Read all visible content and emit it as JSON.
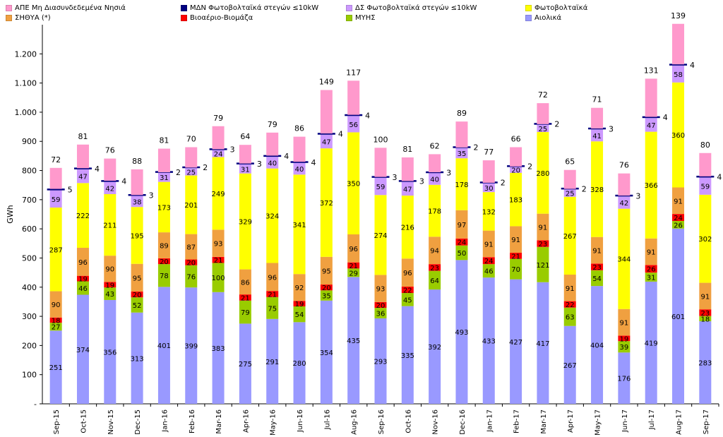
{
  "chart_data": {
    "type": "bar",
    "stacked": true,
    "title": "",
    "xlabel": "",
    "ylabel": "GWh",
    "ylim": [
      0,
      1300
    ],
    "yticks": [
      0,
      100,
      200,
      300,
      400,
      500,
      600,
      700,
      800,
      900,
      1000,
      1100,
      1200
    ],
    "ytick_labels": [
      "-",
      "100",
      "200",
      "300",
      "400",
      "500",
      "600",
      "700",
      "800",
      "900",
      "1.000",
      "1.100",
      "1.200"
    ],
    "grid": false,
    "categories": [
      "Sep-15",
      "Oct-15",
      "Nov-15",
      "Dec-15",
      "Jan-16",
      "Feb-16",
      "Mar-16",
      "Apr-16",
      "May-16",
      "Jun-16",
      "Jul-16",
      "Aug-16",
      "Sep-16",
      "Oct-16",
      "Nov-16",
      "Dec-16",
      "Jan-17",
      "Feb-17",
      "Mar-17",
      "Apr-17",
      "May-17",
      "Jun-17",
      "Jul-17",
      "Aug-17",
      "Sep-17"
    ],
    "series": [
      {
        "name": "Αιολικά",
        "color": "#9999ff",
        "values": [
          251,
          374,
          356,
          313,
          401,
          399,
          383,
          275,
          291,
          280,
          354,
          435,
          293,
          335,
          392,
          493,
          433,
          427,
          417,
          267,
          404,
          176,
          419,
          601,
          283
        ]
      },
      {
        "name": "ΜΥΗΣ",
        "color": "#99cc00",
        "values": [
          27,
          46,
          43,
          52,
          78,
          76,
          100,
          79,
          75,
          54,
          35,
          29,
          36,
          45,
          64,
          50,
          46,
          70,
          121,
          63,
          54,
          39,
          31,
          26,
          18
        ]
      },
      {
        "name": "Βιοαέριο-Βιομάζα",
        "color": "#ff0000",
        "values": [
          18,
          19,
          19,
          20,
          20,
          20,
          21,
          21,
          21,
          19,
          20,
          21,
          20,
          22,
          23,
          24,
          24,
          21,
          23,
          22,
          23,
          19,
          26,
          24,
          23
        ]
      },
      {
        "name": "ΣΗΘΥΑ (*)",
        "color": "#f0a040",
        "values": [
          90,
          96,
          90,
          95,
          89,
          87,
          93,
          86,
          96,
          92,
          95,
          96,
          93,
          96,
          94,
          97,
          91,
          91,
          91,
          91,
          91,
          91,
          91,
          91,
          91
        ]
      },
      {
        "name": "Φωτοβολταϊκά",
        "color": "#ffff00",
        "values": [
          287,
          222,
          211,
          195,
          173,
          201,
          249,
          329,
          324,
          341,
          372,
          350,
          274,
          216,
          178,
          178,
          132,
          183,
          280,
          267,
          328,
          344,
          366,
          360,
          302
        ]
      },
      {
        "name": "ΔΣ Φωτοβολταϊκά στεγών ≤10kW",
        "color": "#cc99ff",
        "values": [
          59,
          47,
          42,
          38,
          31,
          25,
          24,
          31,
          40,
          40,
          47,
          56,
          59,
          47,
          40,
          35,
          30,
          20,
          25,
          25,
          41,
          42,
          47,
          58,
          59
        ]
      },
      {
        "name": "ΜΔΝ Φωτοβολταϊκά στεγών ≤10kW",
        "color": "#000080",
        "values": [
          5,
          4,
          4,
          3,
          2,
          2,
          3,
          3,
          4,
          4,
          4,
          4,
          3,
          3,
          3,
          2,
          2,
          2,
          2,
          2,
          3,
          3,
          4,
          4,
          4
        ]
      },
      {
        "name": "ΑΠΕ Μη Διασυνδεδεμένα Νησιά",
        "color": "#ff99cc",
        "values": [
          72,
          81,
          76,
          88,
          81,
          70,
          79,
          64,
          79,
          86,
          149,
          117,
          100,
          81,
          62,
          89,
          77,
          66,
          72,
          65,
          71,
          76,
          131,
          139,
          80
        ]
      }
    ],
    "legend": {
      "placement": "top",
      "row1": [
        "ΑΠΕ Μη Διασυνδεδεμένα Νησιά",
        "ΜΔΝ Φωτοβολταϊκά στεγών ≤10kW",
        "ΔΣ Φωτοβολταϊκά στεγών ≤10kW",
        "Φωτοβολταϊκά"
      ],
      "row2": [
        "ΣΗΘΥΑ (*)",
        "Βιοαέριο-Βιομάζα",
        "ΜΥΗΣ",
        "Αιολικά"
      ]
    }
  }
}
